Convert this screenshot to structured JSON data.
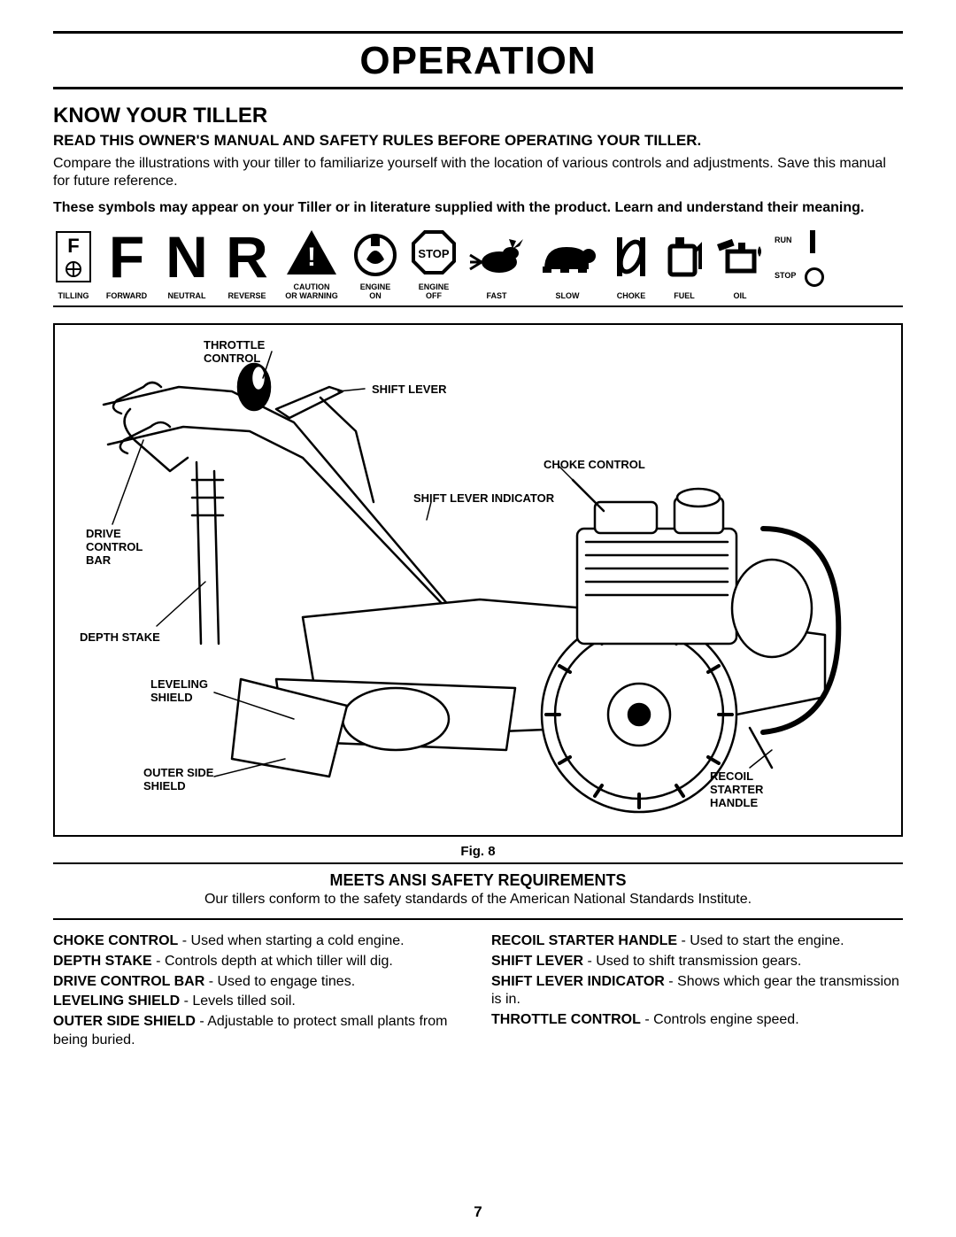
{
  "title": "OPERATION",
  "section": "KNOW YOUR TILLER",
  "sub": "READ THIS OWNER'S MANUAL AND SAFETY RULES BEFORE OPERATING YOUR TILLER.",
  "intro": "Compare the illustrations with your tiller to familiarize yourself with the location of various controls and adjustments. Save this manual for future reference.",
  "symbols_note": "These symbols  may appear on your Tiller or in literature supplied with the product.  Learn and understand their meaning.",
  "symbols": {
    "tilling": "TILLING",
    "forward": "FORWARD",
    "neutral": "NEUTRAL",
    "reverse": "REVERSE",
    "caution": "CAUTION\nOR WARNING",
    "engine_on": "ENGINE\nON",
    "engine_off": "ENGINE\nOFF",
    "fast": "FAST",
    "slow": "SLOW",
    "choke": "CHOKE",
    "fuel": "FUEL",
    "oil": "OIL",
    "run": "RUN",
    "stop": "STOP",
    "stop_sign": "STOP"
  },
  "diagram_labels": {
    "throttle": "THROTTLE\nCONTROL",
    "shift_lever": "SHIFT LEVER",
    "choke_control": "CHOKE CONTROL",
    "shift_indicator": "SHIFT LEVER INDICATOR",
    "drive_bar": "DRIVE\nCONTROL\nBAR",
    "depth_stake": "DEPTH STAKE",
    "leveling_shield": "LEVELING\nSHIELD",
    "outer_shield": "OUTER SIDE\nSHIELD",
    "recoil": "RECOIL\nSTARTER\nHANDLE"
  },
  "fig": "Fig. 8",
  "ansi_h": "MEETS ANSI SAFETY REQUIREMENTS",
  "ansi_sub": "Our tillers conform to the safety standards of the American National Standards Institute.",
  "defs_left": [
    {
      "term": "CHOKE CONTROL",
      "text": " - Used  when starting a cold engine."
    },
    {
      "term": "DEPTH STAKE",
      "text": " - Controls depth at which tiller will dig."
    },
    {
      "term": "DRIVE CONTROL BAR",
      "text": " - Used to engage tines."
    },
    {
      "term": "LEVELING SHIELD",
      "text": " - Levels tilled soil."
    },
    {
      "term": "OUTER SIDE SHIELD",
      "text": " - Adjustable to protect small plants from being buried."
    }
  ],
  "defs_right": [
    {
      "term": "RECOIL STARTER HANDLE",
      "text": " - Used to start the engine."
    },
    {
      "term": "SHIFT LEVER",
      "text": " - Used to shift transmission gears."
    },
    {
      "term": "SHIFT LEVER INDICATOR",
      "text": " - Shows which gear the transmission is in."
    },
    {
      "term": "THROTTLE CONTROL",
      "text": " - Controls engine speed."
    }
  ],
  "page": "7"
}
